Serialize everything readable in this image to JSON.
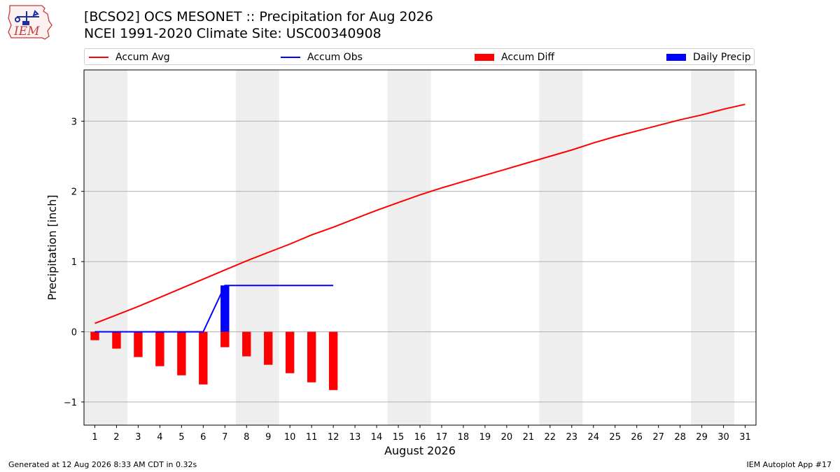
{
  "logo": {
    "text": "IEM"
  },
  "title_line1": "[BCSO2] OCS MESONET :: Precipitation for Aug 2026",
  "title_line2": "NCEI 1991-2020 Climate Site: USC00340908",
  "legend": [
    {
      "label": "Accum Avg",
      "kind": "line",
      "color": "#ff0000"
    },
    {
      "label": "Accum Obs",
      "kind": "line",
      "color": "#0000ff"
    },
    {
      "label": "Accum Diff",
      "kind": "patch",
      "color": "#ff0000"
    },
    {
      "label": "Daily Precip",
      "kind": "patch",
      "color": "#0000ff"
    }
  ],
  "footer": {
    "left": "Generated at 12 Aug 2026 8:33 AM CDT in 0.32s",
    "right": "IEM Autoplot App #17"
  },
  "chart_data": {
    "type": "bar",
    "xlabel": "August 2026",
    "ylabel": "Precipitation [inch]",
    "xlim": [
      0.5,
      31.5
    ],
    "ylim": [
      -1.33,
      3.73
    ],
    "x_ticks": [
      1,
      2,
      3,
      4,
      5,
      6,
      7,
      8,
      9,
      10,
      11,
      12,
      13,
      14,
      15,
      16,
      17,
      18,
      19,
      20,
      21,
      22,
      23,
      24,
      25,
      26,
      27,
      28,
      29,
      30,
      31
    ],
    "y_ticks": [
      -1,
      0,
      1,
      2,
      3
    ],
    "y_tick_labels": [
      "−1",
      "0",
      "1",
      "2",
      "3"
    ],
    "grid": "y",
    "weekend_shading": [
      [
        0.5,
        2.5
      ],
      [
        7.5,
        9.5
      ],
      [
        14.5,
        16.5
      ],
      [
        21.5,
        23.5
      ],
      [
        28.5,
        30.5
      ]
    ],
    "accum_avg": {
      "x": [
        1,
        2,
        3,
        4,
        5,
        6,
        7,
        8,
        9,
        10,
        11,
        12,
        13,
        14,
        15,
        16,
        17,
        18,
        19,
        20,
        21,
        22,
        23,
        24,
        25,
        26,
        27,
        28,
        29,
        30,
        31
      ],
      "values": [
        0.12,
        0.24,
        0.36,
        0.49,
        0.62,
        0.75,
        0.88,
        1.01,
        1.13,
        1.25,
        1.38,
        1.49,
        1.61,
        1.73,
        1.84,
        1.95,
        2.05,
        2.14,
        2.23,
        2.32,
        2.41,
        2.5,
        2.59,
        2.69,
        2.78,
        2.86,
        2.94,
        3.02,
        3.09,
        3.17,
        3.24
      ]
    },
    "accum_obs": {
      "x": [
        1,
        2,
        3,
        4,
        5,
        6,
        7,
        8,
        9,
        10,
        11,
        12
      ],
      "values": [
        0,
        0,
        0,
        0,
        0,
        0,
        0.66,
        0.66,
        0.66,
        0.66,
        0.66,
        0.66
      ]
    },
    "accum_diff": {
      "x": [
        1,
        2,
        3,
        4,
        5,
        6,
        7,
        8,
        9,
        10,
        11,
        12
      ],
      "values": [
        -0.12,
        -0.24,
        -0.36,
        -0.49,
        -0.62,
        -0.75,
        -0.22,
        -0.35,
        -0.47,
        -0.59,
        -0.72,
        -0.83
      ]
    },
    "daily_precip": {
      "x": [
        7
      ],
      "values": [
        0.66
      ]
    }
  }
}
